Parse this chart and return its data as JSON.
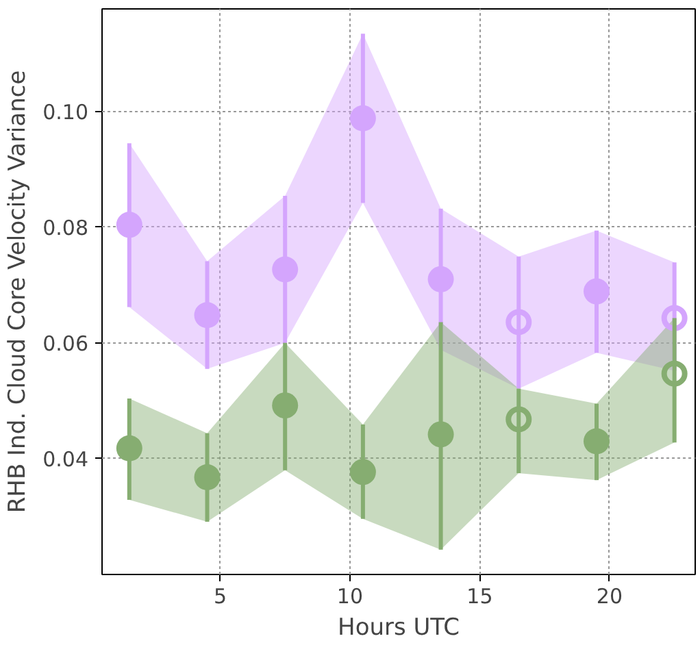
{
  "chart_data": {
    "type": "scatter",
    "xlabel": "Hours UTC",
    "ylabel": "RHB Ind. Cloud Core Velocity Variance",
    "x": [
      1.5,
      4.5,
      7.5,
      10.5,
      13.5,
      16.5,
      19.5,
      22.5
    ],
    "xlim": [
      0.45,
      23.3
    ],
    "ylim": [
      0.02,
      0.1177
    ],
    "xticks": [
      5,
      10,
      15,
      20
    ],
    "yticks": [
      0.04,
      0.06,
      0.08,
      {
        "value": 0.1,
        "label": "0.10"
      }
    ],
    "grid": true,
    "marker": "circle",
    "series": [
      {
        "color": "#d4a5fd",
        "values": [
          0.0804,
          0.0648,
          0.0727,
          0.0988,
          0.071,
          null,
          0.0689,
          null
        ],
        "lower": [
          0.0662,
          0.0555,
          0.06,
          0.0842,
          0.0588,
          0.0521,
          0.0583,
          0.0552
        ],
        "upper": [
          0.0945,
          0.0741,
          0.0854,
          0.1134,
          0.0832,
          0.0749,
          0.0794,
          0.0739
        ],
        "errors": [
          [
            0.0662,
            0.0945
          ],
          [
            0.0555,
            0.0741
          ],
          [
            0.06,
            0.0854
          ],
          [
            0.0842,
            0.1134
          ],
          [
            0.0588,
            0.0832
          ],
          null,
          [
            0.0583,
            0.0794
          ],
          null
        ]
      },
      {
        "color": "#d4a5fd",
        "values": [
          null,
          null,
          null,
          null,
          null,
          0.0636,
          null,
          0.0643
        ],
        "errors": [
          null,
          null,
          null,
          null,
          null,
          [
            0.0521,
            0.0749
          ],
          null,
          [
            0.0552,
            0.0739
          ]
        ]
      },
      {
        "color": "#86ad71",
        "values": [
          0.0418,
          0.0368,
          0.0492,
          0.0377,
          0.0442,
          null,
          0.043,
          null
        ],
        "lower": [
          0.0329,
          0.0291,
          0.038,
          0.0296,
          0.0243,
          0.0375,
          0.0363,
          0.0428
        ],
        "upper": [
          0.0504,
          0.0444,
          0.06,
          0.0459,
          0.0636,
          0.0521,
          0.0495,
          0.0643
        ],
        "errors": [
          [
            0.0329,
            0.0504
          ],
          [
            0.0291,
            0.0444
          ],
          [
            0.038,
            0.06
          ],
          [
            0.0296,
            0.0459
          ],
          [
            0.0243,
            0.0636
          ],
          null,
          [
            0.0363,
            0.0495
          ],
          null
        ]
      },
      {
        "color": "#86ad71",
        "values": [
          null,
          null,
          null,
          null,
          null,
          0.0468,
          null,
          0.0547
        ],
        "errors": [
          null,
          null,
          null,
          null,
          null,
          [
            0.0375,
            0.0521
          ],
          null,
          [
            0.0428,
            0.0643
          ]
        ]
      }
    ]
  }
}
